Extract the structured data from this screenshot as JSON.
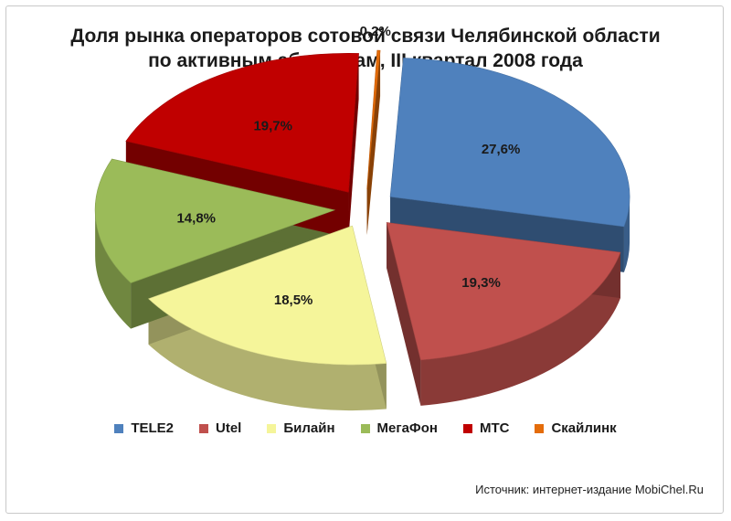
{
  "chart_data": {
    "type": "pie",
    "title": "Доля рынка операторов сотовой связи Челябинской области",
    "subtitle": "по активным абонентам, III квартал  2008 года",
    "legend_position": "bottom",
    "slices": [
      {
        "name": "TELE2",
        "value": 27.6,
        "label": "27,6%",
        "color": "#4f81bd"
      },
      {
        "name": "Utel",
        "value": 19.3,
        "label": "19,3%",
        "color": "#c0504d"
      },
      {
        "name": "Билайн",
        "value": 18.5,
        "label": "18,5%",
        "color": "#f5f59a"
      },
      {
        "name": "МегаФон",
        "value": 14.8,
        "label": "14,8%",
        "color": "#9bbb59"
      },
      {
        "name": "МТС",
        "value": 19.7,
        "label": "19,7%",
        "color": "#c00000"
      },
      {
        "name": "Скайлинк",
        "value": 0.2,
        "label": "0,2%",
        "color": "#e46c0a"
      }
    ]
  },
  "source_text": "Источник: интернет-издание MobiChel.Ru"
}
